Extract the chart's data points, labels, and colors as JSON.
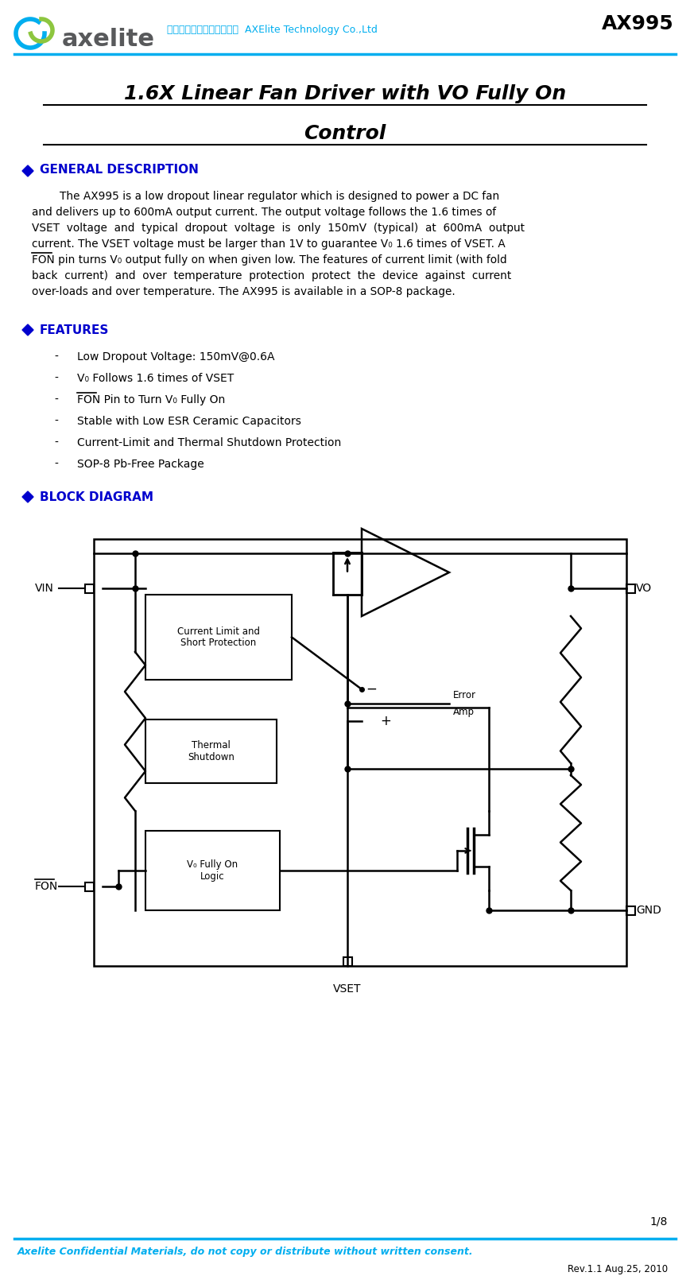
{
  "title_main": "1.6X Linear Fan Driver with VO Fully On",
  "title_main2": "Control",
  "chip_name": "AX995",
  "company_cn": "亞瑟萊特科技股份有限公司",
  "company_en": "AXElite Technology Co.,Ltd",
  "section1_title": "GENERAL DESCRIPTION",
  "section2_title": "FEATURES",
  "features": [
    "Low Dropout Voltage: 150mV@0.6A",
    "V₀ Follows 1.6 times of VSET",
    "FON Pin to Turn V₀ Fully On",
    "Stable with Low ESR Ceramic Capacitors",
    "Current-Limit and Thermal Shutdown Protection",
    "SOP-8 Pb-Free Package"
  ],
  "section3_title": "BLOCK DIAGRAM",
  "footer_text": "Axelite Confidential Materials, do not copy or distribute without written consent.",
  "footer_rev": "Rev.1.1 Aug.25, 2010",
  "page_num": "1/8",
  "header_color": "#00AEEF",
  "section_color": "#0000CD",
  "green_color": "#8DC63F",
  "dark_gray": "#58595B",
  "bg_color": "#FFFFFF"
}
